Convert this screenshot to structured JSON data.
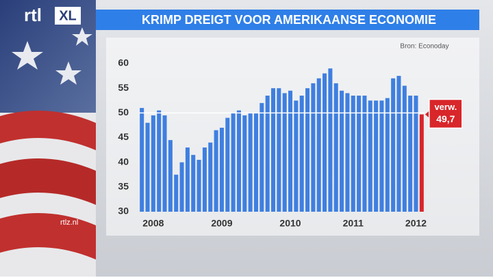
{
  "logo": {
    "main": "rtl",
    "badge": "XL"
  },
  "site": "rtlz.nl",
  "chart_data": {
    "type": "bar",
    "title": "KRIMP DREIGT VOOR AMERIKAANSE ECONOMIE",
    "source": "Bron: Econoday",
    "categories": [
      null,
      null,
      "2008",
      null,
      null,
      null,
      null,
      null,
      null,
      null,
      null,
      null,
      null,
      null,
      "2009",
      null,
      null,
      null,
      null,
      null,
      null,
      null,
      null,
      null,
      null,
      null,
      "2010",
      null,
      null,
      null,
      null,
      null,
      null,
      null,
      null,
      null,
      null,
      "2011",
      null,
      null,
      null,
      null,
      null,
      null,
      null,
      null,
      null,
      null,
      "2012"
    ],
    "values": [
      51,
      48,
      49.5,
      50.5,
      49.5,
      44.5,
      37.5,
      40,
      43,
      41.5,
      40.5,
      43,
      44,
      46.5,
      47,
      49,
      50,
      50.5,
      49.5,
      50,
      50,
      52,
      53.5,
      55,
      55,
      54,
      54.5,
      52.5,
      53.5,
      55,
      56,
      57,
      58,
      59,
      56,
      54.5,
      54,
      53.5,
      53.5,
      53.5,
      52.5,
      52.5,
      52.5,
      53,
      57,
      57.5,
      55.5,
      53.5,
      53.5
    ],
    "color": "#3f7fe0",
    "forecast": {
      "label": "verw.",
      "value": 49.7,
      "value_label": "49,7",
      "color": "#d8262a"
    },
    "ylim": [
      30,
      60
    ],
    "yticks": [
      30,
      35,
      40,
      45,
      50,
      55,
      60
    ],
    "reference_line": 50
  }
}
